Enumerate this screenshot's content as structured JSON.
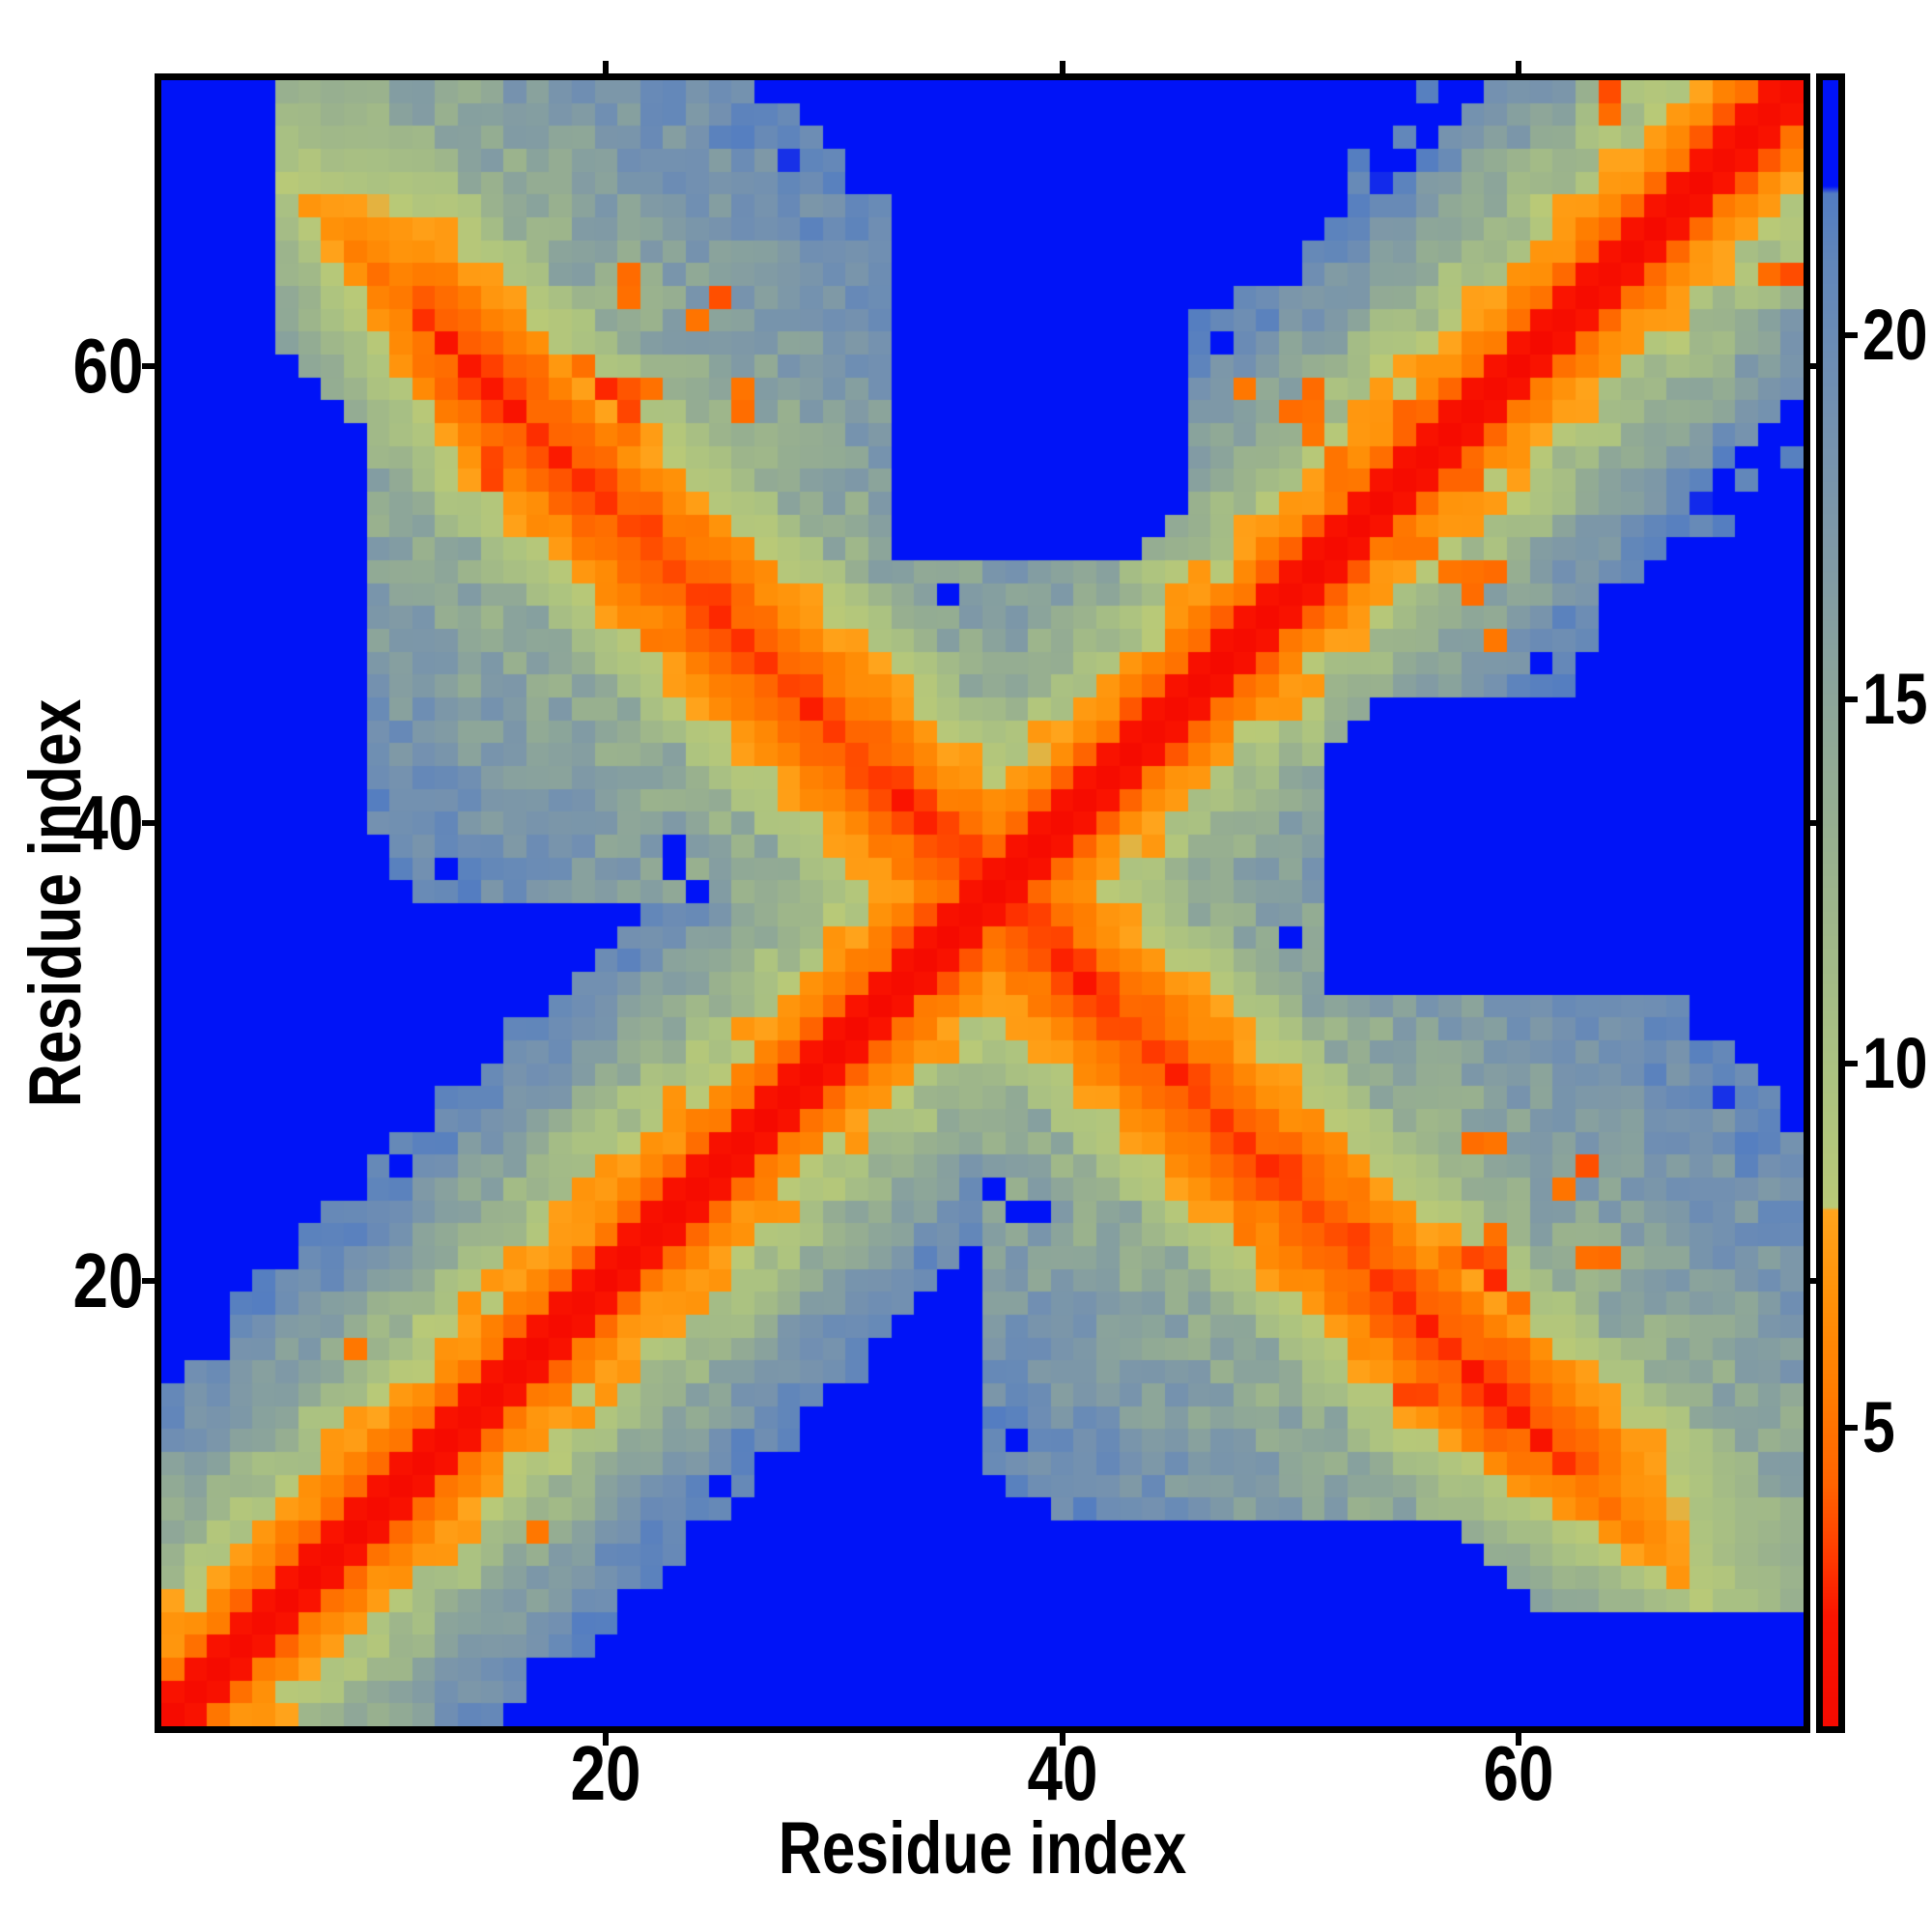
{
  "figure": {
    "background_color": "#ffffff",
    "frame_color": "#000000"
  },
  "chart_data": {
    "type": "heatmap",
    "title": "",
    "xlabel": "Residue index",
    "ylabel": "Residue index",
    "n_residues": 72,
    "x_range": [
      1,
      72
    ],
    "y_range": [
      1,
      72
    ],
    "x_ticks": [
      20,
      40,
      60
    ],
    "y_ticks": [
      20,
      40,
      60
    ],
    "colorbar_ticks": [
      5,
      10,
      15,
      20
    ],
    "value_range": [
      0.9,
      23.5
    ],
    "grid": false,
    "legend": "colorbar-right",
    "background_value_color": "#0013f7",
    "colormap_stops": [
      [
        0.9,
        "#f50a00"
      ],
      [
        2.4,
        "#fa1400"
      ],
      [
        3.2,
        "#ff3a00"
      ],
      [
        4.2,
        "#ff6300"
      ],
      [
        5.5,
        "#ff7d00"
      ],
      [
        6.8,
        "#ff9108"
      ],
      [
        7.98,
        "#ffa41c"
      ],
      [
        8.02,
        "#b9c977"
      ],
      [
        9.5,
        "#aec47f"
      ],
      [
        11,
        "#a4bc86"
      ],
      [
        13,
        "#98b08f"
      ],
      [
        15,
        "#8ca59a"
      ],
      [
        17,
        "#7f99a6"
      ],
      [
        19,
        "#7290b1"
      ],
      [
        21,
        "#6186ba"
      ],
      [
        21.95,
        "#527cc2"
      ],
      [
        22.05,
        "#0013f7"
      ],
      [
        23.5,
        "#0013f7"
      ]
    ],
    "model": {
      "symmetric": true,
      "chain": {
        "t0": 1.1,
        "t1": 2.1,
        "t2": 4.7,
        "t3": 6.4,
        "t4": 7.6,
        "base5": 8.9,
        "slope": 1.35,
        "noise_near": 0.25,
        "noise_mid": 0.9,
        "noise_far": 2.2
      },
      "anti": {
        "center": 74,
        "min_index": 6,
        "core": 2.9,
        "slope": 1.05,
        "end_fade_start": 13,
        "end_fade_rate": 0.8,
        "max_u": 7,
        "noise": 0.8
      },
      "cloud": {
        "min_index": 10,
        "min_max_index": 37,
        "base": 10.3,
        "u_slope": 0.42,
        "max_u": 25,
        "noise": 2.4
      },
      "holes": {
        "rects": [
          {
            "a_min": 33,
            "a_max": 45,
            "b_min": 52,
            "b_max": 72
          }
        ],
        "guard_t": 8,
        "guard_u": 8,
        "cells": [
          [
            50,
            35
          ],
          [
            38,
            23
          ],
          [
            39,
            23
          ],
          [
            37,
            24
          ]
        ]
      },
      "speckles": [
        [
          9,
          17,
          5.5
        ],
        [
          15,
          55,
          3.5
        ],
        [
          15,
          56,
          3.5
        ],
        [
          17,
          60,
          5
        ],
        [
          18,
          54,
          4.5
        ],
        [
          18,
          57,
          4
        ],
        [
          19,
          56,
          5
        ],
        [
          19,
          60,
          5
        ],
        [
          20,
          52,
          5
        ],
        [
          20,
          59,
          3.2
        ],
        [
          21,
          57,
          5
        ],
        [
          21,
          58,
          3.2
        ],
        [
          21,
          59,
          3.5
        ],
        [
          21,
          63,
          5
        ],
        [
          21,
          64,
          5
        ],
        [
          22,
          48,
          5
        ],
        [
          22,
          52,
          5
        ],
        [
          22,
          59,
          5
        ],
        [
          24,
          51,
          5
        ],
        [
          24,
          62,
          5
        ],
        [
          25,
          49,
          3.5
        ],
        [
          25,
          63,
          4
        ],
        [
          26,
          48,
          5
        ],
        [
          26,
          58,
          4.5
        ],
        [
          26,
          59,
          5
        ],
        [
          27,
          45,
          5
        ],
        [
          28,
          44,
          5
        ],
        [
          30,
          43,
          5
        ],
        [
          34,
          41,
          5
        ],
        [
          48,
          59,
          5
        ],
        [
          50,
          58,
          5
        ],
        [
          51,
          57,
          5
        ],
        [
          51,
          58,
          5
        ],
        [
          51,
          59,
          5
        ],
        [
          52,
          55,
          5
        ],
        [
          52,
          56,
          5
        ],
        [
          55,
          58,
          4
        ],
        [
          64,
          71,
          4.5
        ],
        [
          64,
          72,
          4
        ]
      ]
    }
  }
}
